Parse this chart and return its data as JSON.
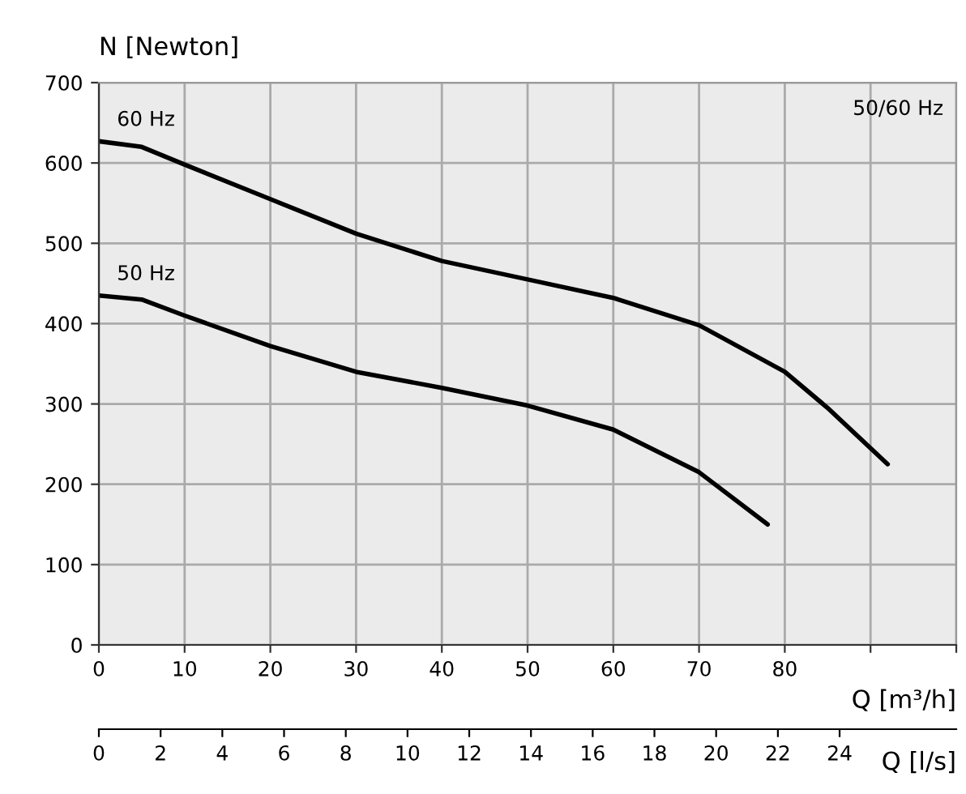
{
  "chart_data": {
    "type": "line",
    "ylabel": "N [Newton]",
    "xlabel": "Q [m³/h]",
    "x2label": "Q [l/s]",
    "annotations": [
      "50/60 Hz"
    ],
    "series": [
      {
        "name": "60 Hz",
        "color": "#000000",
        "x": [
          0,
          5,
          10,
          20,
          30,
          40,
          50,
          60,
          70,
          80,
          85,
          92
        ],
        "values": [
          627,
          620,
          598,
          555,
          512,
          478,
          455,
          432,
          398,
          340,
          295,
          225
        ]
      },
      {
        "name": "50 Hz",
        "color": "#000000",
        "x": [
          0,
          5,
          10,
          20,
          30,
          40,
          50,
          60,
          70,
          78
        ],
        "values": [
          435,
          430,
          410,
          372,
          340,
          320,
          298,
          268,
          215,
          150
        ]
      }
    ],
    "xlim": [
      0,
      100
    ],
    "xticks": [
      0,
      10,
      20,
      30,
      40,
      50,
      60,
      70,
      80,
      {
        "value": 90,
        "label": null
      },
      {
        "value": 100,
        "label": null
      }
    ],
    "ylim": [
      0,
      700
    ],
    "yticks": [
      0,
      100,
      200,
      300,
      400,
      500,
      600,
      700
    ],
    "x2lim": [
      0,
      27.78
    ],
    "x2ticks": [
      0,
      2,
      4,
      6,
      8,
      10,
      12,
      14,
      16,
      18,
      20,
      22,
      24
    ],
    "grid": true,
    "marker": "none",
    "line_style": "solid",
    "legend": false
  }
}
